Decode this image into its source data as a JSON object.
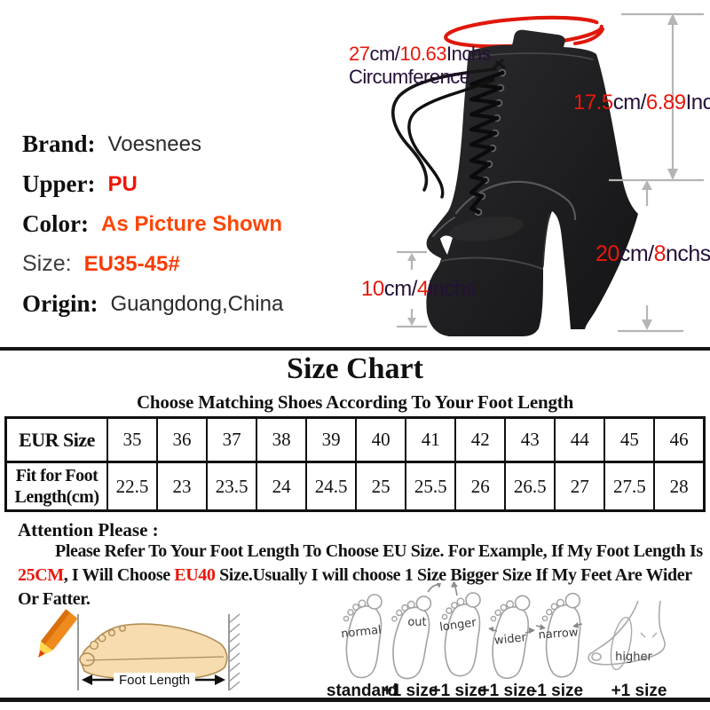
{
  "colors": {
    "accent_red": "#e8170b",
    "accent_orange": "#fa4708",
    "dark_text": "#241038",
    "boot_black": "#1e1e20"
  },
  "measurements": {
    "circumference": {
      "segments": [
        [
          "27",
          "red"
        ],
        [
          "cm/",
          "dark"
        ],
        [
          "10.63",
          "red"
        ],
        [
          "Inchs",
          "dark"
        ]
      ],
      "line2": "Circumference"
    },
    "shaft_height": {
      "segments": [
        [
          "17.5",
          "red"
        ],
        [
          "cm/",
          "dark"
        ],
        [
          "6.89",
          "red"
        ],
        [
          "Inch",
          "dark"
        ]
      ]
    },
    "heel_height": {
      "segments": [
        [
          "20",
          "red"
        ],
        [
          "cm/",
          "dark"
        ],
        [
          "8",
          "red"
        ],
        [
          "nchs",
          "dark"
        ]
      ]
    },
    "platform_height": {
      "segments": [
        [
          "10",
          "red"
        ],
        [
          "cm/",
          "dark"
        ],
        [
          "4",
          "red"
        ],
        [
          "inchs",
          "dark"
        ]
      ]
    }
  },
  "product": {
    "brand_label": "Brand:",
    "brand_value": "Voesnees",
    "upper_label": "Upper:",
    "upper_value": "PU",
    "color_label": "Color:",
    "color_value": "As Picture Shown",
    "size_label": "Size:",
    "size_value": "EU35-45#",
    "origin_label": "Origin:",
    "origin_value": "Guangdong,China"
  },
  "size_chart": {
    "title": "Size Chart",
    "subtitle": "Choose Matching Shoes According To Your Foot Length",
    "header_label": "EUR Size",
    "row2_label_line1": "Fit for Foot",
    "row2_label_line2": "Length(cm)",
    "sizes": [
      "35",
      "36",
      "37",
      "38",
      "39",
      "40",
      "41",
      "42",
      "43",
      "44",
      "45",
      "46"
    ],
    "lengths": [
      "22.5",
      "23",
      "23.5",
      "24",
      "24.5",
      "25",
      "25.5",
      "26",
      "26.5",
      "27",
      "27.5",
      "28"
    ]
  },
  "attention": {
    "heading": "Attention Please :",
    "segments": [
      [
        "Please Refer To Your Foot Length To Choose EU Size. For Example, If My Foot Length Is ",
        "black"
      ],
      [
        "25CM",
        "red"
      ],
      [
        ", I Will Choose ",
        "black"
      ],
      [
        "EU40",
        "red"
      ],
      [
        " Size.Usually I will choose 1 Size Bigger Size If My Feet Are Wider Or Fatter.",
        "black"
      ]
    ]
  },
  "foot_guide": {
    "measure_label": "Foot Length",
    "feet": [
      {
        "name": "normal",
        "result": "standard"
      },
      {
        "name": "out",
        "result": "+1 size"
      },
      {
        "name": "longer",
        "result": "+1 size"
      },
      {
        "name": "wider",
        "result": "+1 size"
      },
      {
        "name": "narrow",
        "result": "-1 size"
      },
      {
        "name": "higher",
        "result": "+1 size"
      }
    ]
  }
}
